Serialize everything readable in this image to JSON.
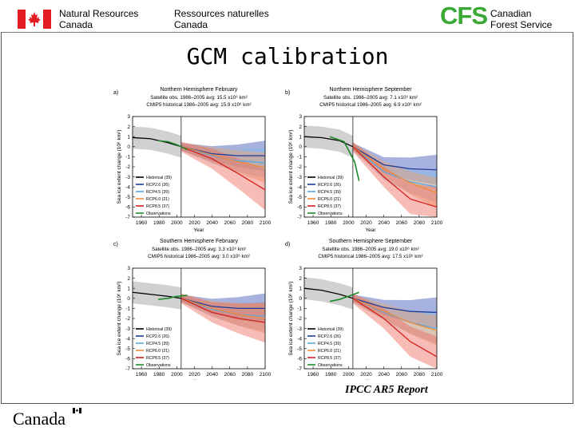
{
  "header": {
    "dept_en_line1": "Natural Resources",
    "dept_en_line2": "Canada",
    "dept_fr_line1": "Ressources naturelles",
    "dept_fr_line2": "Canada",
    "cfs_logo": "CFS",
    "cfs_name_line1": "Canadian",
    "cfs_name_line2": "Forest Service",
    "flag_icon": "canada-flag-icon"
  },
  "slide": {
    "title": "GCM calibration",
    "source": "IPCC AR5 Report",
    "wordmark": "Canada"
  },
  "colors": {
    "historical": "#000000",
    "rcp26": "#1f3c99",
    "rcp45": "#5aa6e0",
    "rcp60": "#f08a3c",
    "rcp85": "#d41f1f",
    "observations": "#1d8a2a",
    "cfs_green": "#3aa835"
  },
  "chart_data": [
    {
      "type": "line",
      "panel": "a)",
      "title": "Northern Hemisphere February",
      "subtitle1": "Satellite obs. 1986–2005 avg: 15.5 x10⁶ km²",
      "subtitle2": "CMIP5 historical 1986–2005 avg: 15.9 x10⁶ km²",
      "xlabel": "Year",
      "ylabel": "Sea ice extent change (10⁶ km²)",
      "xlim": [
        1950,
        2100
      ],
      "ylim": [
        -7,
        3
      ],
      "xticks": [
        "1960",
        "1980",
        "2000",
        "2020",
        "2040",
        "2060",
        "2080",
        "2100"
      ],
      "yticks": [
        "3",
        "2",
        "1",
        "0",
        "-1",
        "-2",
        "-3",
        "-4",
        "-5",
        "-6",
        "-7"
      ],
      "vline": 2005,
      "legend": [
        "Historical (39)",
        "RCP2.6 (26)",
        "RCP4.5 (39)",
        "RCP6.0 (21)",
        "RCP8.5 (37)",
        "Observations"
      ],
      "series": [
        {
          "name": "Historical (39)",
          "key": "historical",
          "x": [
            1950,
            1970,
            1990,
            2005
          ],
          "y": [
            0.9,
            0.8,
            0.4,
            0.0
          ]
        },
        {
          "name": "RCP2.6 (26)",
          "key": "rcp26",
          "x": [
            2005,
            2040,
            2070,
            2100
          ],
          "y": [
            0.0,
            -0.7,
            -0.9,
            -0.9
          ]
        },
        {
          "name": "RCP4.5 (39)",
          "key": "rcp45",
          "x": [
            2005,
            2040,
            2070,
            2100
          ],
          "y": [
            0.0,
            -0.9,
            -1.4,
            -1.6
          ]
        },
        {
          "name": "RCP6.0 (21)",
          "key": "rcp60",
          "x": [
            2005,
            2040,
            2070,
            2100
          ],
          "y": [
            0.0,
            -0.8,
            -1.5,
            -2.1
          ]
        },
        {
          "name": "RCP8.5 (37)",
          "key": "rcp85",
          "x": [
            2005,
            2040,
            2070,
            2100
          ],
          "y": [
            0.0,
            -1.2,
            -2.7,
            -4.3
          ]
        },
        {
          "name": "Observations",
          "key": "observations",
          "x": [
            1979,
            1990,
            2000,
            2012
          ],
          "y": [
            0.6,
            0.5,
            0.2,
            -0.3
          ]
        }
      ]
    },
    {
      "type": "line",
      "panel": "b)",
      "title": "Northern Hemisphere September",
      "subtitle1": "Satellite obs. 1986–2005 avg: 7.1 x10⁶ km²",
      "subtitle2": "CMIP5 historical 1986–2005 avg: 6.9 x10⁶ km²",
      "xlabel": "Year",
      "ylabel": "Sea ice extent change (10⁶ km²)",
      "xlim": [
        1950,
        2100
      ],
      "ylim": [
        -7,
        3
      ],
      "xticks": [
        "1960",
        "1980",
        "2000",
        "2020",
        "2040",
        "2060",
        "2080",
        "2100"
      ],
      "yticks": [
        "3",
        "2",
        "1",
        "0",
        "-1",
        "-2",
        "-3",
        "-4",
        "-5",
        "-6",
        "-7"
      ],
      "vline": 2005,
      "legend": [
        "Historical (39)",
        "RCP2.6 (26)",
        "RCP4.5 (39)",
        "RCP6.0 (21)",
        "RCP8.5 (37)",
        "Observations"
      ],
      "series": [
        {
          "name": "Historical (39)",
          "key": "historical",
          "x": [
            1950,
            1970,
            1990,
            2005
          ],
          "y": [
            1.0,
            0.9,
            0.6,
            0.0
          ]
        },
        {
          "name": "RCP2.6 (26)",
          "key": "rcp26",
          "x": [
            2005,
            2040,
            2070,
            2100
          ],
          "y": [
            0.0,
            -1.8,
            -2.2,
            -2.3
          ]
        },
        {
          "name": "RCP4.5 (39)",
          "key": "rcp45",
          "x": [
            2005,
            2040,
            2070,
            2100
          ],
          "y": [
            0.0,
            -2.5,
            -3.5,
            -4.0
          ]
        },
        {
          "name": "RCP6.0 (21)",
          "key": "rcp60",
          "x": [
            2005,
            2040,
            2070,
            2100
          ],
          "y": [
            0.0,
            -2.2,
            -3.6,
            -4.6
          ]
        },
        {
          "name": "RCP8.5 (37)",
          "key": "rcp85",
          "x": [
            2005,
            2040,
            2070,
            2100
          ],
          "y": [
            0.0,
            -3.0,
            -5.2,
            -6.0
          ]
        },
        {
          "name": "Observations",
          "key": "observations",
          "x": [
            1979,
            1995,
            2007,
            2012
          ],
          "y": [
            1.0,
            0.5,
            -1.5,
            -3.4
          ]
        }
      ]
    },
    {
      "type": "line",
      "panel": "c)",
      "title": "Southern Hemisphere February",
      "subtitle1": "Satellite obs. 1986–2005 avg: 3.3 x10⁶ km²",
      "subtitle2": "CMIP5 historical 1986–2005 avg: 3.0 x10⁶ km²",
      "xlabel": "Year",
      "ylabel": "Sea ice extent change (10⁶ km²)",
      "xlim": [
        1950,
        2100
      ],
      "ylim": [
        -7,
        3
      ],
      "xticks": [
        "1960",
        "1980",
        "2000",
        "2020",
        "2040",
        "2060",
        "2080",
        "2100"
      ],
      "yticks": [
        "3",
        "2",
        "1",
        "0",
        "-1",
        "-2",
        "-3",
        "-4",
        "-5",
        "-6",
        "-7"
      ],
      "vline": 2005,
      "legend": [
        "Historical (39)",
        "RCP2.6 (26)",
        "RCP4.5 (39)",
        "RCP6.0 (21)",
        "RCP8.5 (37)",
        "Observations"
      ],
      "series": [
        {
          "name": "Historical (39)",
          "key": "historical",
          "x": [
            1950,
            1970,
            1990,
            2005
          ],
          "y": [
            0.6,
            0.4,
            0.2,
            0.0
          ]
        },
        {
          "name": "RCP2.6 (26)",
          "key": "rcp26",
          "x": [
            2005,
            2040,
            2070,
            2100
          ],
          "y": [
            0.0,
            -0.8,
            -1.0,
            -1.0
          ]
        },
        {
          "name": "RCP4.5 (39)",
          "key": "rcp45",
          "x": [
            2005,
            2040,
            2070,
            2100
          ],
          "y": [
            0.0,
            -1.1,
            -1.6,
            -1.8
          ]
        },
        {
          "name": "RCP6.0 (21)",
          "key": "rcp60",
          "x": [
            2005,
            2040,
            2070,
            2100
          ],
          "y": [
            0.0,
            -1.0,
            -1.6,
            -2.0
          ]
        },
        {
          "name": "RCP8.5 (37)",
          "key": "rcp85",
          "x": [
            2005,
            2040,
            2070,
            2100
          ],
          "y": [
            0.0,
            -1.4,
            -2.0,
            -2.4
          ]
        },
        {
          "name": "Observations",
          "key": "observations",
          "x": [
            1979,
            1990,
            2000,
            2012
          ],
          "y": [
            -0.1,
            0.0,
            0.2,
            0.3
          ]
        }
      ]
    },
    {
      "type": "line",
      "panel": "d)",
      "title": "Southern Hemisphere September",
      "subtitle1": "Satellite obs. 1986–2005 avg: 19.0 x10⁶ km²",
      "subtitle2": "CMIP5 historical 1986–2005 avg: 17.5 x10⁶ km²",
      "xlabel": "Year",
      "ylabel": "Sea ice extent change (10⁶ km²)",
      "xlim": [
        1950,
        2100
      ],
      "ylim": [
        -7,
        3
      ],
      "xticks": [
        "1960",
        "1980",
        "2000",
        "2020",
        "2040",
        "2060",
        "2080",
        "2100"
      ],
      "yticks": [
        "3",
        "2",
        "1",
        "0",
        "-1",
        "-2",
        "-3",
        "-4",
        "-5",
        "-6",
        "-7"
      ],
      "vline": 2005,
      "legend": [
        "Historical (39)",
        "RCP2.6 (26)",
        "RCP4.5 (39)",
        "RCP6.0 (21)",
        "RCP8.5 (37)",
        "Observations"
      ],
      "series": [
        {
          "name": "Historical (39)",
          "key": "historical",
          "x": [
            1950,
            1970,
            1990,
            2005
          ],
          "y": [
            1.0,
            0.8,
            0.4,
            0.0
          ]
        },
        {
          "name": "RCP2.6 (26)",
          "key": "rcp26",
          "x": [
            2005,
            2040,
            2070,
            2100
          ],
          "y": [
            0.0,
            -0.9,
            -1.3,
            -1.4
          ]
        },
        {
          "name": "RCP4.5 (39)",
          "key": "rcp45",
          "x": [
            2005,
            2040,
            2070,
            2100
          ],
          "y": [
            0.0,
            -1.4,
            -2.4,
            -3.0
          ]
        },
        {
          "name": "RCP6.0 (21)",
          "key": "rcp60",
          "x": [
            2005,
            2040,
            2070,
            2100
          ],
          "y": [
            0.0,
            -1.3,
            -2.4,
            -3.2
          ]
        },
        {
          "name": "RCP8.5 (37)",
          "key": "rcp85",
          "x": [
            2005,
            2040,
            2070,
            2100
          ],
          "y": [
            0.0,
            -2.0,
            -4.3,
            -5.8
          ]
        },
        {
          "name": "Observations",
          "key": "observations",
          "x": [
            1979,
            1990,
            2000,
            2012
          ],
          "y": [
            -0.3,
            -0.1,
            0.2,
            0.6
          ]
        }
      ]
    }
  ]
}
